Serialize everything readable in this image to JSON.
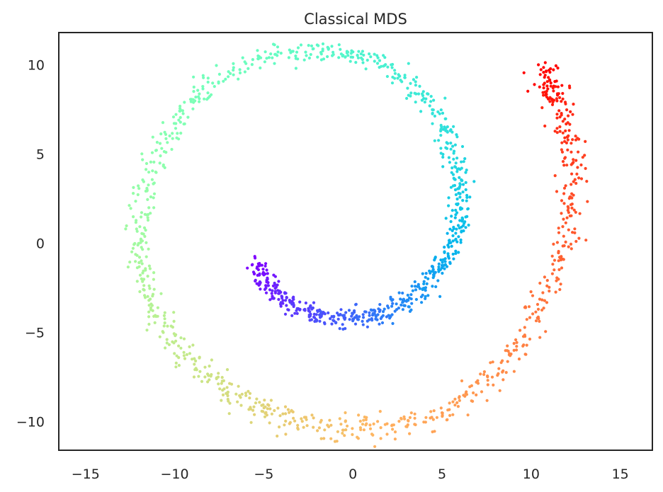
{
  "chart_data": {
    "type": "scatter",
    "title": "Classical MDS",
    "xlabel": "",
    "ylabel": "",
    "xlim": [
      -16.5,
      16.8
    ],
    "ylim": [
      -11.6,
      11.8
    ],
    "x_ticks": [
      -15,
      -10,
      -5,
      0,
      5,
      10,
      15
    ],
    "y_ticks": [
      -10,
      -5,
      0,
      5,
      10
    ],
    "x_tick_labels": [
      "−15",
      "−10",
      "−5",
      "0",
      "5",
      "10",
      "15"
    ],
    "y_tick_labels": [
      "−10",
      "−5",
      "0",
      "5",
      "10"
    ],
    "grid": false,
    "legend": "none",
    "colormap": "rainbow",
    "series": [
      {
        "point_count": 1500,
        "shape": "spiral",
        "spiral_start": [
          -5.4,
          -1.1
        ],
        "spiral_center": [
          -0.3,
          0.0
        ],
        "spiral_end": [
          10.5,
          9.6
        ],
        "points_sample": [
          {
            "x": -5.4,
            "y": -1.1,
            "color": "#7f00ff"
          },
          {
            "x": -4.4,
            "y": -2.8,
            "color": "#6a1bff"
          },
          {
            "x": -2.5,
            "y": -3.8,
            "color": "#4f50fe"
          },
          {
            "x": 0.0,
            "y": -4.1,
            "color": "#3470fb"
          },
          {
            "x": 2.5,
            "y": -3.5,
            "color": "#2e8df5"
          },
          {
            "x": 4.5,
            "y": -1.8,
            "color": "#1aa6ef"
          },
          {
            "x": 5.8,
            "y": 0.5,
            "color": "#10c2e6"
          },
          {
            "x": 6.0,
            "y": 3.5,
            "color": "#22d9dd"
          },
          {
            "x": 4.8,
            "y": 7.0,
            "color": "#3fe9d1"
          },
          {
            "x": 1.5,
            "y": 10.0,
            "color": "#5bf5c2"
          },
          {
            "x": -2.5,
            "y": 10.8,
            "color": "#64fab5"
          },
          {
            "x": -8.0,
            "y": 9.0,
            "color": "#7ffca6"
          },
          {
            "x": -11.0,
            "y": 5.0,
            "color": "#9ef490"
          },
          {
            "x": -12.0,
            "y": 0.0,
            "color": "#b8e97f"
          },
          {
            "x": -11.0,
            "y": -4.0,
            "color": "#d1db72"
          },
          {
            "x": -8.0,
            "y": -7.5,
            "color": "#efc267"
          },
          {
            "x": -4.5,
            "y": -9.5,
            "color": "#fdb55c"
          },
          {
            "x": 0.0,
            "y": -10.3,
            "color": "#ffa257"
          },
          {
            "x": 5.0,
            "y": -9.5,
            "color": "#ff8b4e"
          },
          {
            "x": 9.0,
            "y": -6.0,
            "color": "#ff6b3e"
          },
          {
            "x": 11.5,
            "y": -1.0,
            "color": "#ff4c2b"
          },
          {
            "x": 12.3,
            "y": 4.0,
            "color": "#ff2a19"
          },
          {
            "x": 11.5,
            "y": 8.0,
            "color": "#ff0d0d"
          },
          {
            "x": 10.5,
            "y": 9.6,
            "color": "#ff0000"
          }
        ]
      }
    ]
  }
}
